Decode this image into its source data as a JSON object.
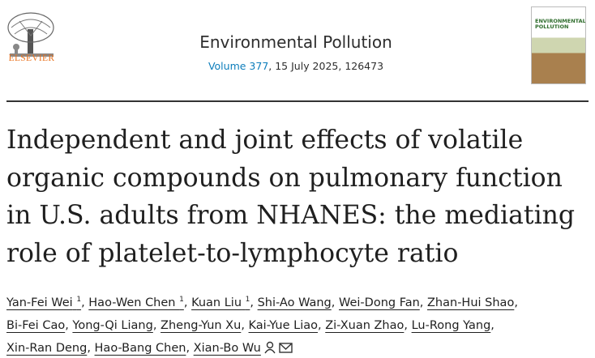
{
  "header": {
    "publisher": "ELSEVIER",
    "journal": "Environmental Pollution",
    "volume": "Volume 377",
    "issue_details": ", 15 July 2025, 126473",
    "cover_title": "ENVIRONMENTAL POLLUTION"
  },
  "article": {
    "title": "Independent and joint effects of volatile organic compounds on pulmonary function in U.S. adults from NHANES: the mediating role of platelet-to-lymphocyte ratio",
    "separator": ",",
    "authors": [
      {
        "name": "Yan-Fei Wei",
        "affiliation": 1
      },
      {
        "name": "Hao-Wen Chen",
        "affiliation": 1
      },
      {
        "name": "Kuan Liu",
        "affiliation": 1
      },
      {
        "name": "Shi-Ao Wang"
      },
      {
        "name": "Wei-Dong Fan"
      },
      {
        "name": "Zhan-Hui Shao"
      },
      {
        "name": "Bi-Fei Cao"
      },
      {
        "name": "Yong-Qi Liang"
      },
      {
        "name": "Zheng-Yun Xu"
      },
      {
        "name": "Kai-Yue Liao"
      },
      {
        "name": "Zi-Xuan Zhao"
      },
      {
        "name": "Lu-Rong Yang"
      },
      {
        "name": "Xin-Ran Deng"
      },
      {
        "name": "Hao-Bang Chen"
      },
      {
        "name": "Xian-Bo Wu"
      }
    ]
  }
}
